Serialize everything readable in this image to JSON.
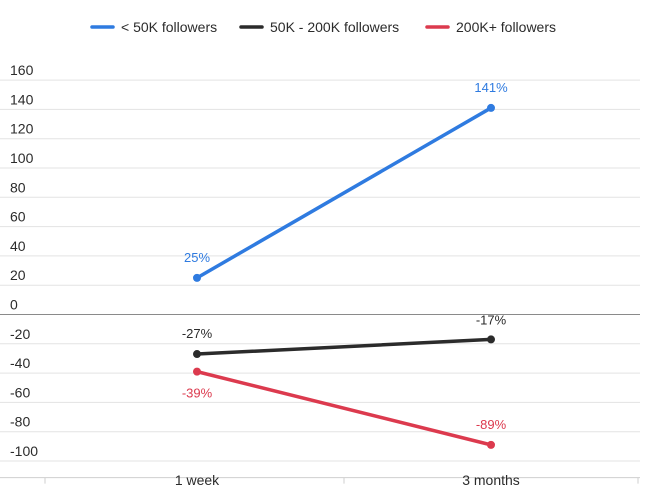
{
  "chart_data": {
    "type": "line",
    "categories": [
      "1 week",
      "3 months"
    ],
    "series": [
      {
        "name": "< 50K followers",
        "color": "#2f7be0",
        "values": [
          25,
          141
        ],
        "labels": [
          "25%",
          "141%"
        ]
      },
      {
        "name": "50K - 200K followers",
        "color": "#2b2b2b",
        "values": [
          -27,
          -17
        ],
        "labels": [
          "-27%",
          "-17%"
        ]
      },
      {
        "name": "200K+ followers",
        "color": "#dc3a4e",
        "values": [
          -39,
          -89
        ],
        "labels": [
          "-39%",
          "-89%"
        ]
      }
    ],
    "yticks": [
      160,
      140,
      120,
      100,
      80,
      60,
      40,
      20,
      0,
      -20,
      -40,
      -60,
      -80,
      -100
    ],
    "ylim": [
      -110,
      160
    ],
    "grid": true,
    "legend": "top-center",
    "title": "",
    "xlabel": "",
    "ylabel": ""
  }
}
